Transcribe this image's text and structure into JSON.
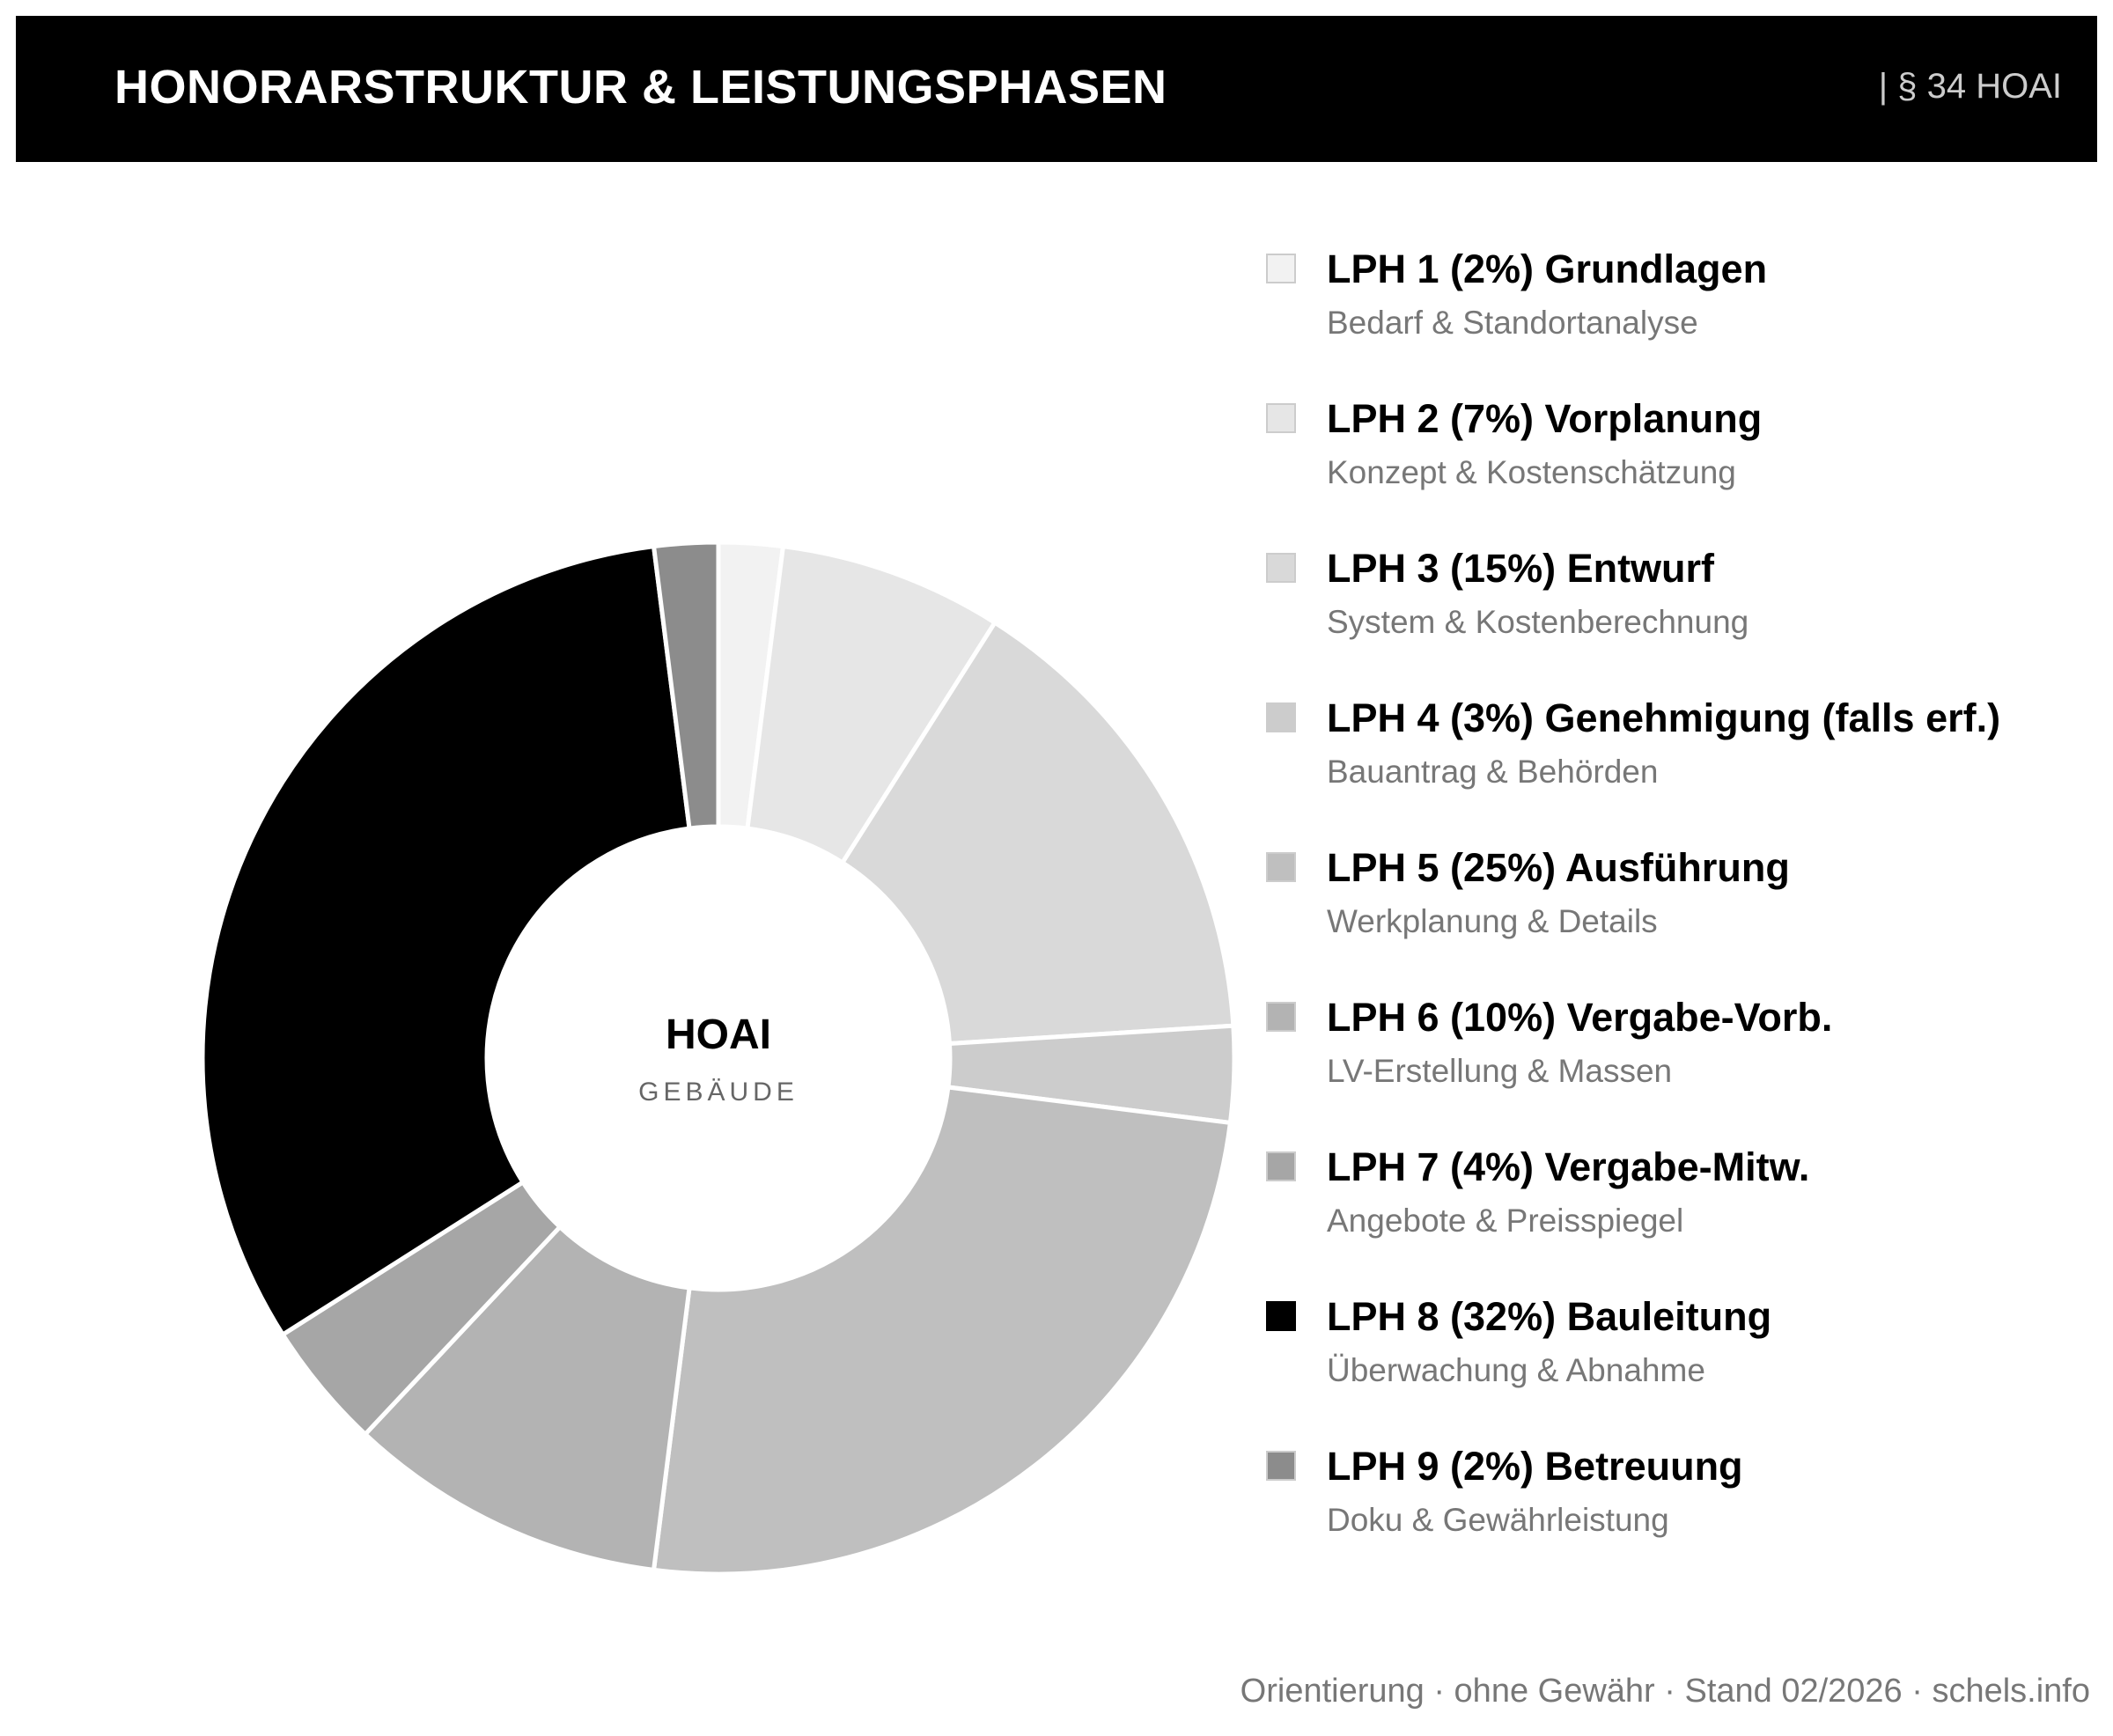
{
  "header": {
    "title": "HONORARSTRUKTUR & LEISTUNGSPHASEN",
    "ref": "| § 34 HOAI"
  },
  "chart_data": {
    "type": "pie",
    "variant": "donut",
    "center_title": "HOAI",
    "center_subtitle": "GEBÄUDE",
    "legend_placement": "right",
    "slices": [
      {
        "label": "LPH 1 (2%) Grundlagen",
        "sub": "Bedarf & Standortanalyse",
        "value": 2,
        "color": "#f2f2f2"
      },
      {
        "label": "LPH 2 (7%) Vorplanung",
        "sub": "Konzept & Kostenschätzung",
        "value": 7,
        "color": "#e6e6e6"
      },
      {
        "label": "LPH 3 (15%) Entwurf",
        "sub": "System & Kostenberechnung",
        "value": 15,
        "color": "#d9d9d9"
      },
      {
        "label": "LPH 4 (3%) Genehmigung (falls erf.)",
        "sub": "Bauantrag & Behörden",
        "value": 3,
        "color": "#cccccc"
      },
      {
        "label": "LPH 5 (25%) Ausführung",
        "sub": "Werkplanung & Details",
        "value": 25,
        "color": "#bfbfbf"
      },
      {
        "label": "LPH 6 (10%) Vergabe-Vorb.",
        "sub": "LV-Erstellung & Massen",
        "value": 10,
        "color": "#b3b3b3"
      },
      {
        "label": "LPH 7 (4%) Vergabe-Mitw.",
        "sub": "Angebote & Preisspiegel",
        "value": 4,
        "color": "#a6a6a6"
      },
      {
        "label": "LPH 8 (32%) Bauleitung",
        "sub": "Überwachung & Abnahme",
        "value": 32,
        "color": "#000000"
      },
      {
        "label": "LPH 9 (2%) Betreuung",
        "sub": "Doku & Gewährleistung",
        "value": 2,
        "color": "#8c8c8c"
      }
    ]
  },
  "footer": "Orientierung · ohne Gewähr · Stand 02/2026 · schels.info"
}
